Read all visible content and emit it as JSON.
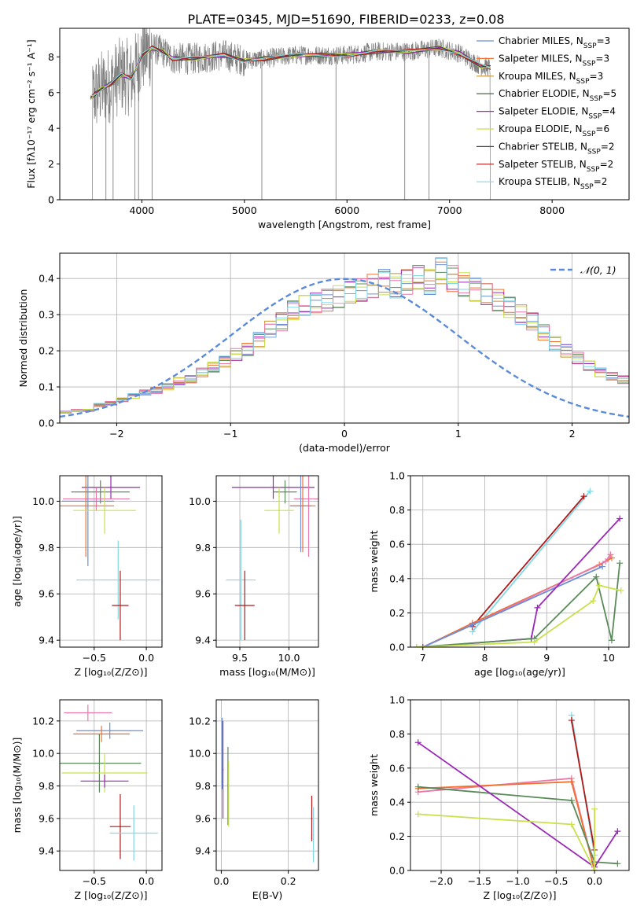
{
  "figure": {
    "title": "PLATE=0345, MJD=51690, FIBERID=0233, z=0.08"
  },
  "colors": {
    "chabrier_miles": "#6a8fd8",
    "salpeter_miles": "#f07030",
    "kroupa_miles": "#c8902a",
    "chabrier_elodie": "#2f5a2f",
    "salpeter_elodie": "#9a28b8",
    "kroupa_elodie": "#c8e04a",
    "chabrier_stelib": "#444444",
    "salpeter_stelib": "#b01818",
    "kroupa_stelib": "#80d8e8",
    "data": "#808080",
    "normal_curve": "#5b8bd8",
    "green_model": "#5a8a5a",
    "pink_model": "#e878a8"
  },
  "chart_data": [
    {
      "id": "spectrum",
      "type": "line",
      "xlabel": "wavelength [Angstrom, rest frame]",
      "ylabel": "Flux [fλ10⁻¹⁷ erg cm⁻² s⁻¹ A⁻¹]",
      "xlim": [
        3200,
        8750
      ],
      "ylim": [
        0,
        9.6
      ],
      "xticks": [
        4000,
        5000,
        6000,
        7000,
        8000
      ],
      "yticks": [
        0,
        2,
        4,
        6,
        8
      ],
      "grid": false,
      "legend_position": "upper-right",
      "legend": [
        {
          "label": "Chabrier MILES, N_SSP=3",
          "color_key": "chabrier_miles"
        },
        {
          "label": "Salpeter MILES, N_SSP=3",
          "color_key": "salpeter_miles"
        },
        {
          "label": "Kroupa MILES, N_SSP=3",
          "color_key": "kroupa_miles"
        },
        {
          "label": "Chabrier ELODIE, N_SSP=5",
          "color_key": "chabrier_elodie"
        },
        {
          "label": "Salpeter ELODIE, N_SSP=4",
          "color_key": "salpeter_elodie"
        },
        {
          "label": "Kroupa ELODIE, N_SSP=6",
          "color_key": "kroupa_elodie"
        },
        {
          "label": "Chabrier STELIB, N_SSP=2",
          "color_key": "chabrier_stelib"
        },
        {
          "label": "Salpeter STELIB, N_SSP=2",
          "color_key": "salpeter_stelib"
        },
        {
          "label": "Kroupa STELIB, N_SSP=2",
          "color_key": "kroupa_stelib"
        }
      ],
      "model_continuum": {
        "x": [
          3500,
          3540,
          3600,
          3700,
          3800,
          3900,
          3950,
          4000,
          4100,
          4200,
          4300,
          4500,
          4800,
          5000,
          5200,
          5500,
          5800,
          6000,
          6300,
          6600,
          6900,
          7100,
          7300,
          7400
        ],
        "y": [
          5.7,
          5.9,
          6.2,
          6.5,
          7.0,
          6.8,
          7.4,
          8.1,
          8.5,
          8.3,
          7.9,
          7.9,
          8.1,
          7.8,
          7.9,
          8.1,
          8.1,
          8.1,
          8.3,
          8.3,
          8.5,
          8.2,
          7.5,
          7.4
        ]
      }
    },
    {
      "id": "residual_histogram",
      "type": "bar",
      "xlabel": "(data-model)/error",
      "ylabel": "Normed distribution",
      "xlim": [
        -2.5,
        2.5
      ],
      "ylim": [
        0,
        0.47
      ],
      "xticks": [
        -2,
        -1,
        0,
        1,
        2
      ],
      "yticks": [
        0.0,
        0.1,
        0.2,
        0.3,
        0.4
      ],
      "grid": true,
      "legend_position": "upper-right",
      "legend": [
        {
          "label": "𝒩(0, 1)",
          "color_key": "normal_curve"
        }
      ],
      "curve": {
        "type": "normal",
        "mean": 0,
        "sigma": 1
      },
      "bin_edges_start": -2.5,
      "bin_width": 0.1,
      "values": [
        0.03,
        0.035,
        0.035,
        0.05,
        0.055,
        0.065,
        0.075,
        0.085,
        0.09,
        0.1,
        0.115,
        0.12,
        0.14,
        0.155,
        0.17,
        0.19,
        0.205,
        0.23,
        0.26,
        0.28,
        0.31,
        0.325,
        0.33,
        0.34,
        0.35,
        0.365,
        0.37,
        0.38,
        0.39,
        0.38,
        0.39,
        0.4,
        0.39,
        0.42,
        0.4,
        0.385,
        0.37,
        0.36,
        0.34,
        0.32,
        0.3,
        0.28,
        0.25,
        0.22,
        0.2,
        0.18,
        0.16,
        0.14,
        0.13,
        0.12,
        0.1
      ]
    },
    {
      "id": "age_vs_z",
      "type": "scatter",
      "xlabel": "Z [log₁₀(Z/Z⊙)]",
      "ylabel": "age  [log₁₀(age/yr)]",
      "xlim": [
        -0.83,
        0.15
      ],
      "ylim": [
        9.37,
        10.11
      ],
      "xticks": [
        -0.5,
        0.0
      ],
      "xtick_labels": [
        "−0.5",
        "0.0"
      ],
      "yticks": [
        9.4,
        9.6,
        9.8,
        10.0
      ],
      "grid": true,
      "errorbars": [
        {
          "x": -0.34,
          "y": 10.06,
          "xerr": 0.28,
          "yerr": 0.05,
          "color_key": "salpeter_elodie"
        },
        {
          "x": -0.44,
          "y": 10.04,
          "xerr": 0.28,
          "yerr": 0.05,
          "color_key": "green_model"
        },
        {
          "x": -0.48,
          "y": 10.01,
          "xerr": 0.32,
          "yerr": 0.05,
          "color_key": "pink_model"
        },
        {
          "x": -0.56,
          "y": 10.0,
          "xerr": 0.25,
          "yerr": 0.28,
          "color_key": "chabrier_miles"
        },
        {
          "x": -0.58,
          "y": 9.98,
          "xerr": 0.27,
          "yerr": 0.22,
          "color_key": "salpeter_miles"
        },
        {
          "x": -0.4,
          "y": 9.96,
          "xerr": 0.3,
          "yerr": 0.1,
          "color_key": "kroupa_elodie"
        },
        {
          "x": -0.27,
          "y": 9.66,
          "xerr": 0.4,
          "yerr": 0.17,
          "color_key": "kroupa_stelib"
        },
        {
          "x": -0.25,
          "y": 9.55,
          "xerr": 0.08,
          "yerr": 0.15,
          "color_key": "salpeter_stelib"
        }
      ]
    },
    {
      "id": "age_vs_mass",
      "type": "scatter",
      "xlabel": "mass [log₁₀(M/M⊙)]",
      "ylabel": "",
      "xlim": [
        9.26,
        10.3
      ],
      "ylim": [
        9.37,
        10.11
      ],
      "xticks": [
        9.5,
        10.0
      ],
      "yticks": [
        9.4,
        9.6,
        9.8,
        10.0
      ],
      "grid": true,
      "errorbars": [
        {
          "x": 9.84,
          "y": 10.06,
          "xerr": 0.42,
          "yerr": 0.05,
          "color_key": "salpeter_elodie"
        },
        {
          "x": 9.96,
          "y": 10.04,
          "xerr": 0.12,
          "yerr": 0.05,
          "color_key": "green_model"
        },
        {
          "x": 10.2,
          "y": 10.01,
          "xerr": 0.15,
          "yerr": 0.25,
          "color_key": "pink_model"
        },
        {
          "x": 10.12,
          "y": 9.98,
          "xerr": 0.11,
          "yerr": 0.2,
          "color_key": "chabrier_miles"
        },
        {
          "x": 10.14,
          "y": 9.98,
          "xerr": 0.13,
          "yerr": 0.2,
          "color_key": "salpeter_miles"
        },
        {
          "x": 9.9,
          "y": 9.96,
          "xerr": 0.15,
          "yerr": 0.1,
          "color_key": "kroupa_elodie"
        },
        {
          "x": 9.51,
          "y": 9.66,
          "xerr": 0.15,
          "yerr": 0.26,
          "color_key": "kroupa_stelib"
        },
        {
          "x": 9.55,
          "y": 9.55,
          "xerr": 0.1,
          "yerr": 0.15,
          "color_key": "salpeter_stelib"
        }
      ]
    },
    {
      "id": "mass_weight_vs_age",
      "type": "line",
      "xlabel": "age  [log₁₀(age/yr)]",
      "ylabel": "mass weight",
      "xlim": [
        6.8,
        10.33
      ],
      "ylim": [
        0.0,
        1.0
      ],
      "xticks": [
        7,
        8,
        9,
        10
      ],
      "yticks": [
        0.0,
        0.2,
        0.4,
        0.6,
        0.8,
        1.0
      ],
      "grid": true,
      "series": [
        {
          "color_key": "kroupa_stelib",
          "x": [
            7.8,
            9.7
          ],
          "y": [
            0.09,
            0.91
          ]
        },
        {
          "color_key": "salpeter_stelib",
          "x": [
            7.8,
            9.6
          ],
          "y": [
            0.12,
            0.88
          ]
        },
        {
          "color_key": "salpeter_miles",
          "x": [
            7.0,
            7.8,
            9.85,
            10.05
          ],
          "y": [
            0.0,
            0.14,
            0.48,
            0.52
          ]
        },
        {
          "color_key": "pink_model",
          "x": [
            7.0,
            7.8,
            9.95,
            10.03
          ],
          "y": [
            0.0,
            0.13,
            0.5,
            0.54
          ]
        },
        {
          "color_key": "chabrier_miles",
          "x": [
            7.0,
            7.8,
            9.9
          ],
          "y": [
            0.0,
            0.13,
            0.47
          ]
        },
        {
          "color_key": "salpeter_elodie",
          "x": [
            7.0,
            8.75,
            8.85,
            10.18
          ],
          "y": [
            0.0,
            0.05,
            0.23,
            0.75
          ]
        },
        {
          "color_key": "green_model",
          "x": [
            6.9,
            8.8,
            9.8,
            10.05,
            10.18
          ],
          "y": [
            0.0,
            0.05,
            0.41,
            0.04,
            0.49
          ]
        },
        {
          "color_key": "kroupa_elodie",
          "x": [
            6.9,
            8.8,
            9.75,
            9.85,
            10.2
          ],
          "y": [
            0.0,
            0.03,
            0.27,
            0.36,
            0.33
          ]
        }
      ]
    },
    {
      "id": "mass_vs_z",
      "type": "scatter",
      "xlabel": "Z [log₁₀(Z/Z⊙)]",
      "ylabel": "mass [log₁₀(M/M⊙)]",
      "xlim": [
        -0.83,
        0.15
      ],
      "ylim": [
        9.28,
        10.33
      ],
      "xticks": [
        -0.5,
        0.0
      ],
      "xtick_labels": [
        "−0.5",
        "0.0"
      ],
      "yticks": [
        9.4,
        9.6,
        9.8,
        10.0,
        10.2
      ],
      "grid": true,
      "errorbars": [
        {
          "x": -0.56,
          "y": 10.25,
          "xerr": 0.23,
          "yerr": 0.05,
          "color_key": "pink_model"
        },
        {
          "x": -0.35,
          "y": 10.14,
          "xerr": 0.32,
          "yerr": 0.05,
          "color_key": "chabrier_miles"
        },
        {
          "x": -0.43,
          "y": 10.12,
          "xerr": 0.27,
          "yerr": 0.05,
          "color_key": "salpeter_miles"
        },
        {
          "x": -0.45,
          "y": 9.94,
          "xerr": 0.4,
          "yerr": 0.18,
          "color_key": "green_model"
        },
        {
          "x": -0.4,
          "y": 9.88,
          "xerr": 0.41,
          "yerr": 0.12,
          "color_key": "kroupa_elodie"
        },
        {
          "x": -0.4,
          "y": 9.83,
          "xerr": 0.23,
          "yerr": 0.04,
          "color_key": "salpeter_elodie"
        },
        {
          "x": -0.25,
          "y": 9.55,
          "xerr": 0.1,
          "yerr": 0.2,
          "color_key": "salpeter_stelib"
        },
        {
          "x": -0.12,
          "y": 9.51,
          "xerr": 0.23,
          "yerr": 0.17,
          "color_key": "kroupa_stelib"
        }
      ]
    },
    {
      "id": "mass_vs_ebv",
      "type": "scatter",
      "xlabel": "E(B-V)",
      "ylabel": "",
      "xlim": [
        -0.015,
        0.29
      ],
      "ylim": [
        9.28,
        10.33
      ],
      "xticks": [
        0.0,
        0.2
      ],
      "yticks": [
        9.4,
        9.6,
        9.8,
        10.0,
        10.2
      ],
      "grid": true,
      "errorbars": [
        {
          "x": 0.003,
          "y": 10.0,
          "xerr": 0.002,
          "yerr": 0.22,
          "color_key": "chabrier_miles"
        },
        {
          "x": 0.005,
          "y": 9.9,
          "xerr": 0.002,
          "yerr": 0.3,
          "color_key": "salpeter_elodie"
        },
        {
          "x": 0.02,
          "y": 9.8,
          "xerr": 0.002,
          "yerr": 0.24,
          "color_key": "green_model"
        },
        {
          "x": 0.022,
          "y": 9.75,
          "xerr": 0.002,
          "yerr": 0.2,
          "color_key": "kroupa_elodie"
        },
        {
          "x": 0.27,
          "y": 9.6,
          "xerr": 0.002,
          "yerr": 0.14,
          "color_key": "salpeter_stelib"
        },
        {
          "x": 0.275,
          "y": 9.5,
          "xerr": 0.002,
          "yerr": 0.17,
          "color_key": "kroupa_stelib"
        }
      ]
    },
    {
      "id": "mass_weight_vs_z",
      "type": "line",
      "xlabel": "Z [log₁₀(Z/Z⊙)]",
      "ylabel": "mass weight",
      "xlim": [
        -2.4,
        0.45
      ],
      "ylim": [
        0.0,
        1.0
      ],
      "xticks": [
        -2.0,
        -1.5,
        -1.0,
        -0.5,
        0.0
      ],
      "xtick_labels": [
        "−2.0",
        "−1.5",
        "−1.0",
        "−0.5",
        "0.0"
      ],
      "yticks": [
        0.0,
        0.2,
        0.4,
        0.6,
        0.8,
        1.0
      ],
      "grid": true,
      "series": [
        {
          "color_key": "kroupa_stelib",
          "x": [
            -0.3,
            0.0
          ],
          "y": [
            0.91,
            0.09
          ]
        },
        {
          "color_key": "salpeter_stelib",
          "x": [
            -0.3,
            0.0
          ],
          "y": [
            0.88,
            0.12
          ]
        },
        {
          "color_key": "pink_model",
          "x": [
            -2.3,
            -0.3,
            0.0
          ],
          "y": [
            0.46,
            0.54,
            0.0
          ]
        },
        {
          "color_key": "salpeter_miles",
          "x": [
            -2.3,
            -0.3,
            0.0
          ],
          "y": [
            0.48,
            0.52,
            0.0
          ]
        },
        {
          "color_key": "green_model",
          "x": [
            -2.3,
            -0.3,
            0.0,
            0.3
          ],
          "y": [
            0.49,
            0.41,
            0.05,
            0.04
          ]
        },
        {
          "color_key": "salpeter_elodie",
          "x": [
            -2.3,
            0.0,
            0.3
          ],
          "y": [
            0.75,
            0.02,
            0.23
          ]
        },
        {
          "color_key": "kroupa_elodie",
          "x": [
            -2.3,
            -0.3,
            0.0,
            0.0
          ],
          "y": [
            0.33,
            0.27,
            0.0,
            0.36
          ]
        }
      ]
    }
  ]
}
